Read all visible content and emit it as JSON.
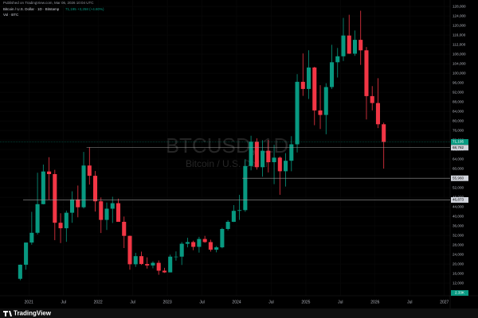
{
  "chart_data": {
    "type": "candlestick",
    "header": "Published on TradingView.com, Mar 06, 2026 10:04 UTC",
    "symbol_line": "Bitcoin / U.S. Dollar · 1D · Bitstamp",
    "quote": "71,195 +3,258 (+4.80%)",
    "volume_label": "Vol · BTC",
    "volume_value": "2.33K",
    "watermark": {
      "symbol": "BTCUSD, 1D",
      "description": "Bitcoin / U.S. Dollar"
    },
    "footer": "TradingView",
    "up_color": "#089981",
    "down_color": "#f23645",
    "x": [
      "2020-11",
      "2020-12",
      "2021-01",
      "2021-02",
      "2021-03",
      "2021-04",
      "2021-05",
      "2021-06",
      "2021-07",
      "2021-08",
      "2021-09",
      "2021-10",
      "2021-11",
      "2021-12",
      "2022-01",
      "2022-02",
      "2022-03",
      "2022-04",
      "2022-05",
      "2022-06",
      "2022-07",
      "2022-08",
      "2022-09",
      "2022-10",
      "2022-11",
      "2022-12",
      "2023-01",
      "2023-02",
      "2023-03",
      "2023-04",
      "2023-05",
      "2023-06",
      "2023-07",
      "2023-08",
      "2023-09",
      "2023-10",
      "2023-11",
      "2023-12",
      "2024-01",
      "2024-02",
      "2024-03",
      "2024-04",
      "2024-05",
      "2024-06",
      "2024-07",
      "2024-08",
      "2024-09",
      "2024-10",
      "2024-11",
      "2024-12",
      "2025-01",
      "2025-02",
      "2025-03",
      "2025-04",
      "2025-05",
      "2025-06",
      "2025-07",
      "2025-08",
      "2025-09",
      "2025-10",
      "2025-11",
      "2025-12",
      "2026-01",
      "2026-02"
    ],
    "open": [
      13800,
      19700,
      29000,
      33100,
      45100,
      58800,
      57700,
      37300,
      35000,
      41500,
      47100,
      43800,
      61300,
      57000,
      46300,
      38500,
      43200,
      45500,
      37700,
      31800,
      19900,
      23300,
      20000,
      19400,
      20500,
      17200,
      16500,
      23100,
      23100,
      28500,
      29200,
      27200,
      30500,
      29200,
      26000,
      27000,
      34700,
      37700,
      42300,
      42600,
      61100,
      71300,
      60600,
      67500,
      62700,
      64600,
      58900,
      63300,
      70200,
      96400,
      93400,
      102400,
      84400,
      82500,
      94200,
      104600,
      107100,
      115800,
      108200,
      114000,
      109600,
      90400,
      87500,
      78600
    ],
    "high": [
      19800,
      29000,
      41900,
      58300,
      61700,
      64800,
      59500,
      41300,
      42400,
      50500,
      52900,
      67000,
      69000,
      59000,
      47900,
      45800,
      48200,
      47400,
      39900,
      31900,
      24700,
      25200,
      22800,
      21100,
      21500,
      18400,
      23900,
      25300,
      29200,
      31000,
      29800,
      31400,
      31800,
      30200,
      27500,
      35200,
      38400,
      44700,
      49000,
      64000,
      73800,
      72700,
      71900,
      72000,
      70000,
      65100,
      66500,
      73600,
      99600,
      108300,
      109600,
      102700,
      95000,
      95800,
      111900,
      110600,
      123200,
      124500,
      117900,
      126200,
      111000,
      94600,
      97900,
      79300
    ],
    "low": [
      13200,
      17600,
      28100,
      32400,
      45000,
      47000,
      30000,
      28800,
      29300,
      37300,
      39600,
      43300,
      53300,
      42000,
      33000,
      34300,
      37200,
      37700,
      26700,
      17600,
      18800,
      19600,
      18100,
      18200,
      15500,
      16300,
      16500,
      21400,
      19600,
      27000,
      25800,
      24800,
      28900,
      25200,
      24900,
      26600,
      34100,
      37600,
      38500,
      41900,
      59300,
      59600,
      56600,
      58400,
      53500,
      49000,
      52500,
      58900,
      66800,
      90500,
      89200,
      78200,
      76600,
      74400,
      93400,
      98200,
      105100,
      108100,
      107300,
      103500,
      80600,
      84400,
      77000,
      60000
    ],
    "close": [
      19700,
      29000,
      33100,
      45100,
      58800,
      57700,
      37300,
      35000,
      41500,
      47100,
      43800,
      61300,
      57000,
      46300,
      38500,
      43200,
      45500,
      37700,
      31800,
      19900,
      23300,
      20000,
      19400,
      20500,
      17200,
      16500,
      23100,
      23100,
      28500,
      29200,
      27200,
      30500,
      29200,
      26000,
      27000,
      34700,
      37700,
      42300,
      42600,
      61100,
      71300,
      60600,
      67500,
      62700,
      64600,
      58900,
      63300,
      70200,
      96400,
      93400,
      102400,
      84400,
      82500,
      94200,
      104600,
      107100,
      115800,
      108200,
      114000,
      109600,
      90400,
      87500,
      78600,
      71195
    ],
    "xlim": [
      "2020-08",
      "2027-02"
    ],
    "xticks": [
      {
        "value": "2021-01",
        "label": "2021"
      },
      {
        "value": "2021-07",
        "label": "Jul"
      },
      {
        "value": "2022-01",
        "label": "2022"
      },
      {
        "value": "2022-07",
        "label": "Jul"
      },
      {
        "value": "2023-01",
        "label": "2023"
      },
      {
        "value": "2023-07",
        "label": "Jul"
      },
      {
        "value": "2024-01",
        "label": "2024"
      },
      {
        "value": "2024-07",
        "label": "Jul"
      },
      {
        "value": "2025-01",
        "label": "2025"
      },
      {
        "value": "2025-07",
        "label": "Jul"
      },
      {
        "value": "2026-01",
        "label": "2026"
      },
      {
        "value": "2026-07",
        "label": "Jul"
      },
      {
        "value": "2027-01",
        "label": "2027"
      }
    ],
    "ylim": [
      6700,
      130700
    ],
    "yticks": [
      {
        "value": 12000,
        "label": "12,000"
      },
      {
        "value": 16000,
        "label": "16,000"
      },
      {
        "value": 20000,
        "label": "20,000"
      },
      {
        "value": 24000,
        "label": "24,000"
      },
      {
        "value": 28000,
        "label": "28,000"
      },
      {
        "value": 32000,
        "label": "32,000"
      },
      {
        "value": 36000,
        "label": "36,000"
      },
      {
        "value": 40000,
        "label": "40,000"
      },
      {
        "value": 44000,
        "label": "44,000"
      },
      {
        "value": 48000,
        "label": "48,000"
      },
      {
        "value": 52000,
        "label": "52,000"
      },
      {
        "value": 56000,
        "label": "56,000"
      },
      {
        "value": 60000,
        "label": "60,000"
      },
      {
        "value": 64000,
        "label": "64,000"
      },
      {
        "value": 68000,
        "label": "68,000"
      },
      {
        "value": 72000,
        "label": "72,000"
      },
      {
        "value": 76000,
        "label": "76,000"
      },
      {
        "value": 80000,
        "label": "80,000"
      },
      {
        "value": 84000,
        "label": "84,000"
      },
      {
        "value": 88000,
        "label": "88,000"
      },
      {
        "value": 92000,
        "label": "92,000"
      },
      {
        "value": 96000,
        "label": "96,000"
      },
      {
        "value": 100000,
        "label": "100,000"
      },
      {
        "value": 104000,
        "label": "104,000"
      },
      {
        "value": 108000,
        "label": "108,000"
      },
      {
        "value": 112000,
        "label": "112,000"
      },
      {
        "value": 116000,
        "label": "116,000"
      },
      {
        "value": 120000,
        "label": "120,000"
      },
      {
        "value": 124000,
        "label": "124,000"
      },
      {
        "value": 128000,
        "label": "128,000"
      }
    ],
    "levels": [
      {
        "value": 68782,
        "label": "68,782",
        "start": "2021-11"
      },
      {
        "value": 55960,
        "label": "55,960",
        "start": "2024-02"
      },
      {
        "value": 46873,
        "label": "46,873",
        "start": "2020-12"
      }
    ],
    "last_price": {
      "value": 71195,
      "label": "71,195"
    }
  }
}
